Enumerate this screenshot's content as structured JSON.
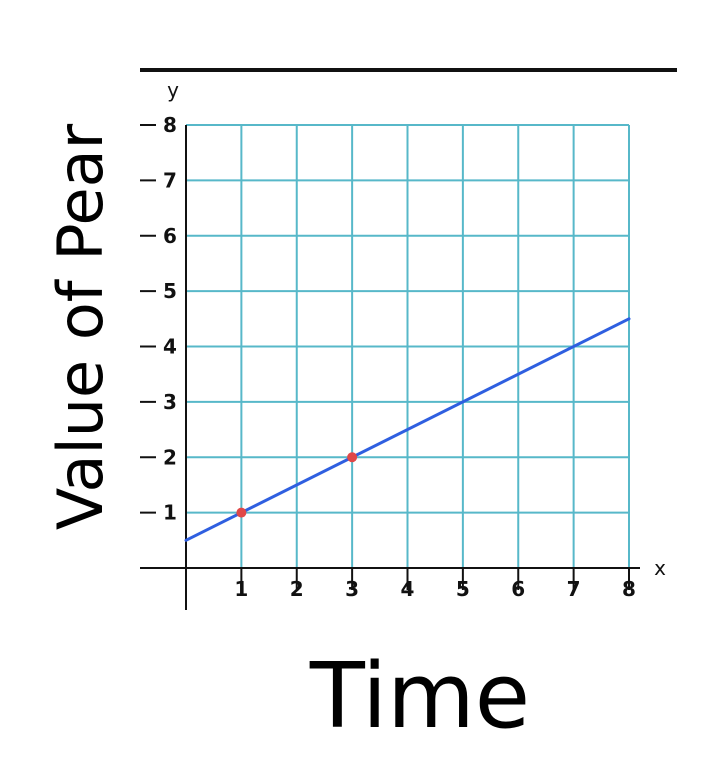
{
  "chart_data": {
    "type": "line",
    "xlabel": "Time",
    "ylabel": "Value of Pear",
    "x_axis_letter": "x",
    "y_axis_letter": "y",
    "xlim": [
      0,
      8
    ],
    "ylim": [
      0,
      8
    ],
    "x_ticks": [
      "1",
      "2",
      "3",
      "4",
      "5",
      "6",
      "7",
      "8"
    ],
    "y_ticks": [
      "1",
      "2",
      "3",
      "4",
      "5",
      "6",
      "7",
      "8"
    ],
    "grid": true,
    "series": [
      {
        "line_color": "#2f5fe0",
        "x": [
          0,
          8
        ],
        "y": [
          0.5,
          4.5
        ]
      }
    ],
    "points": [
      {
        "x": 1,
        "y": 1,
        "color": "#e04848"
      },
      {
        "x": 3,
        "y": 2,
        "color": "#e04848"
      }
    ]
  }
}
